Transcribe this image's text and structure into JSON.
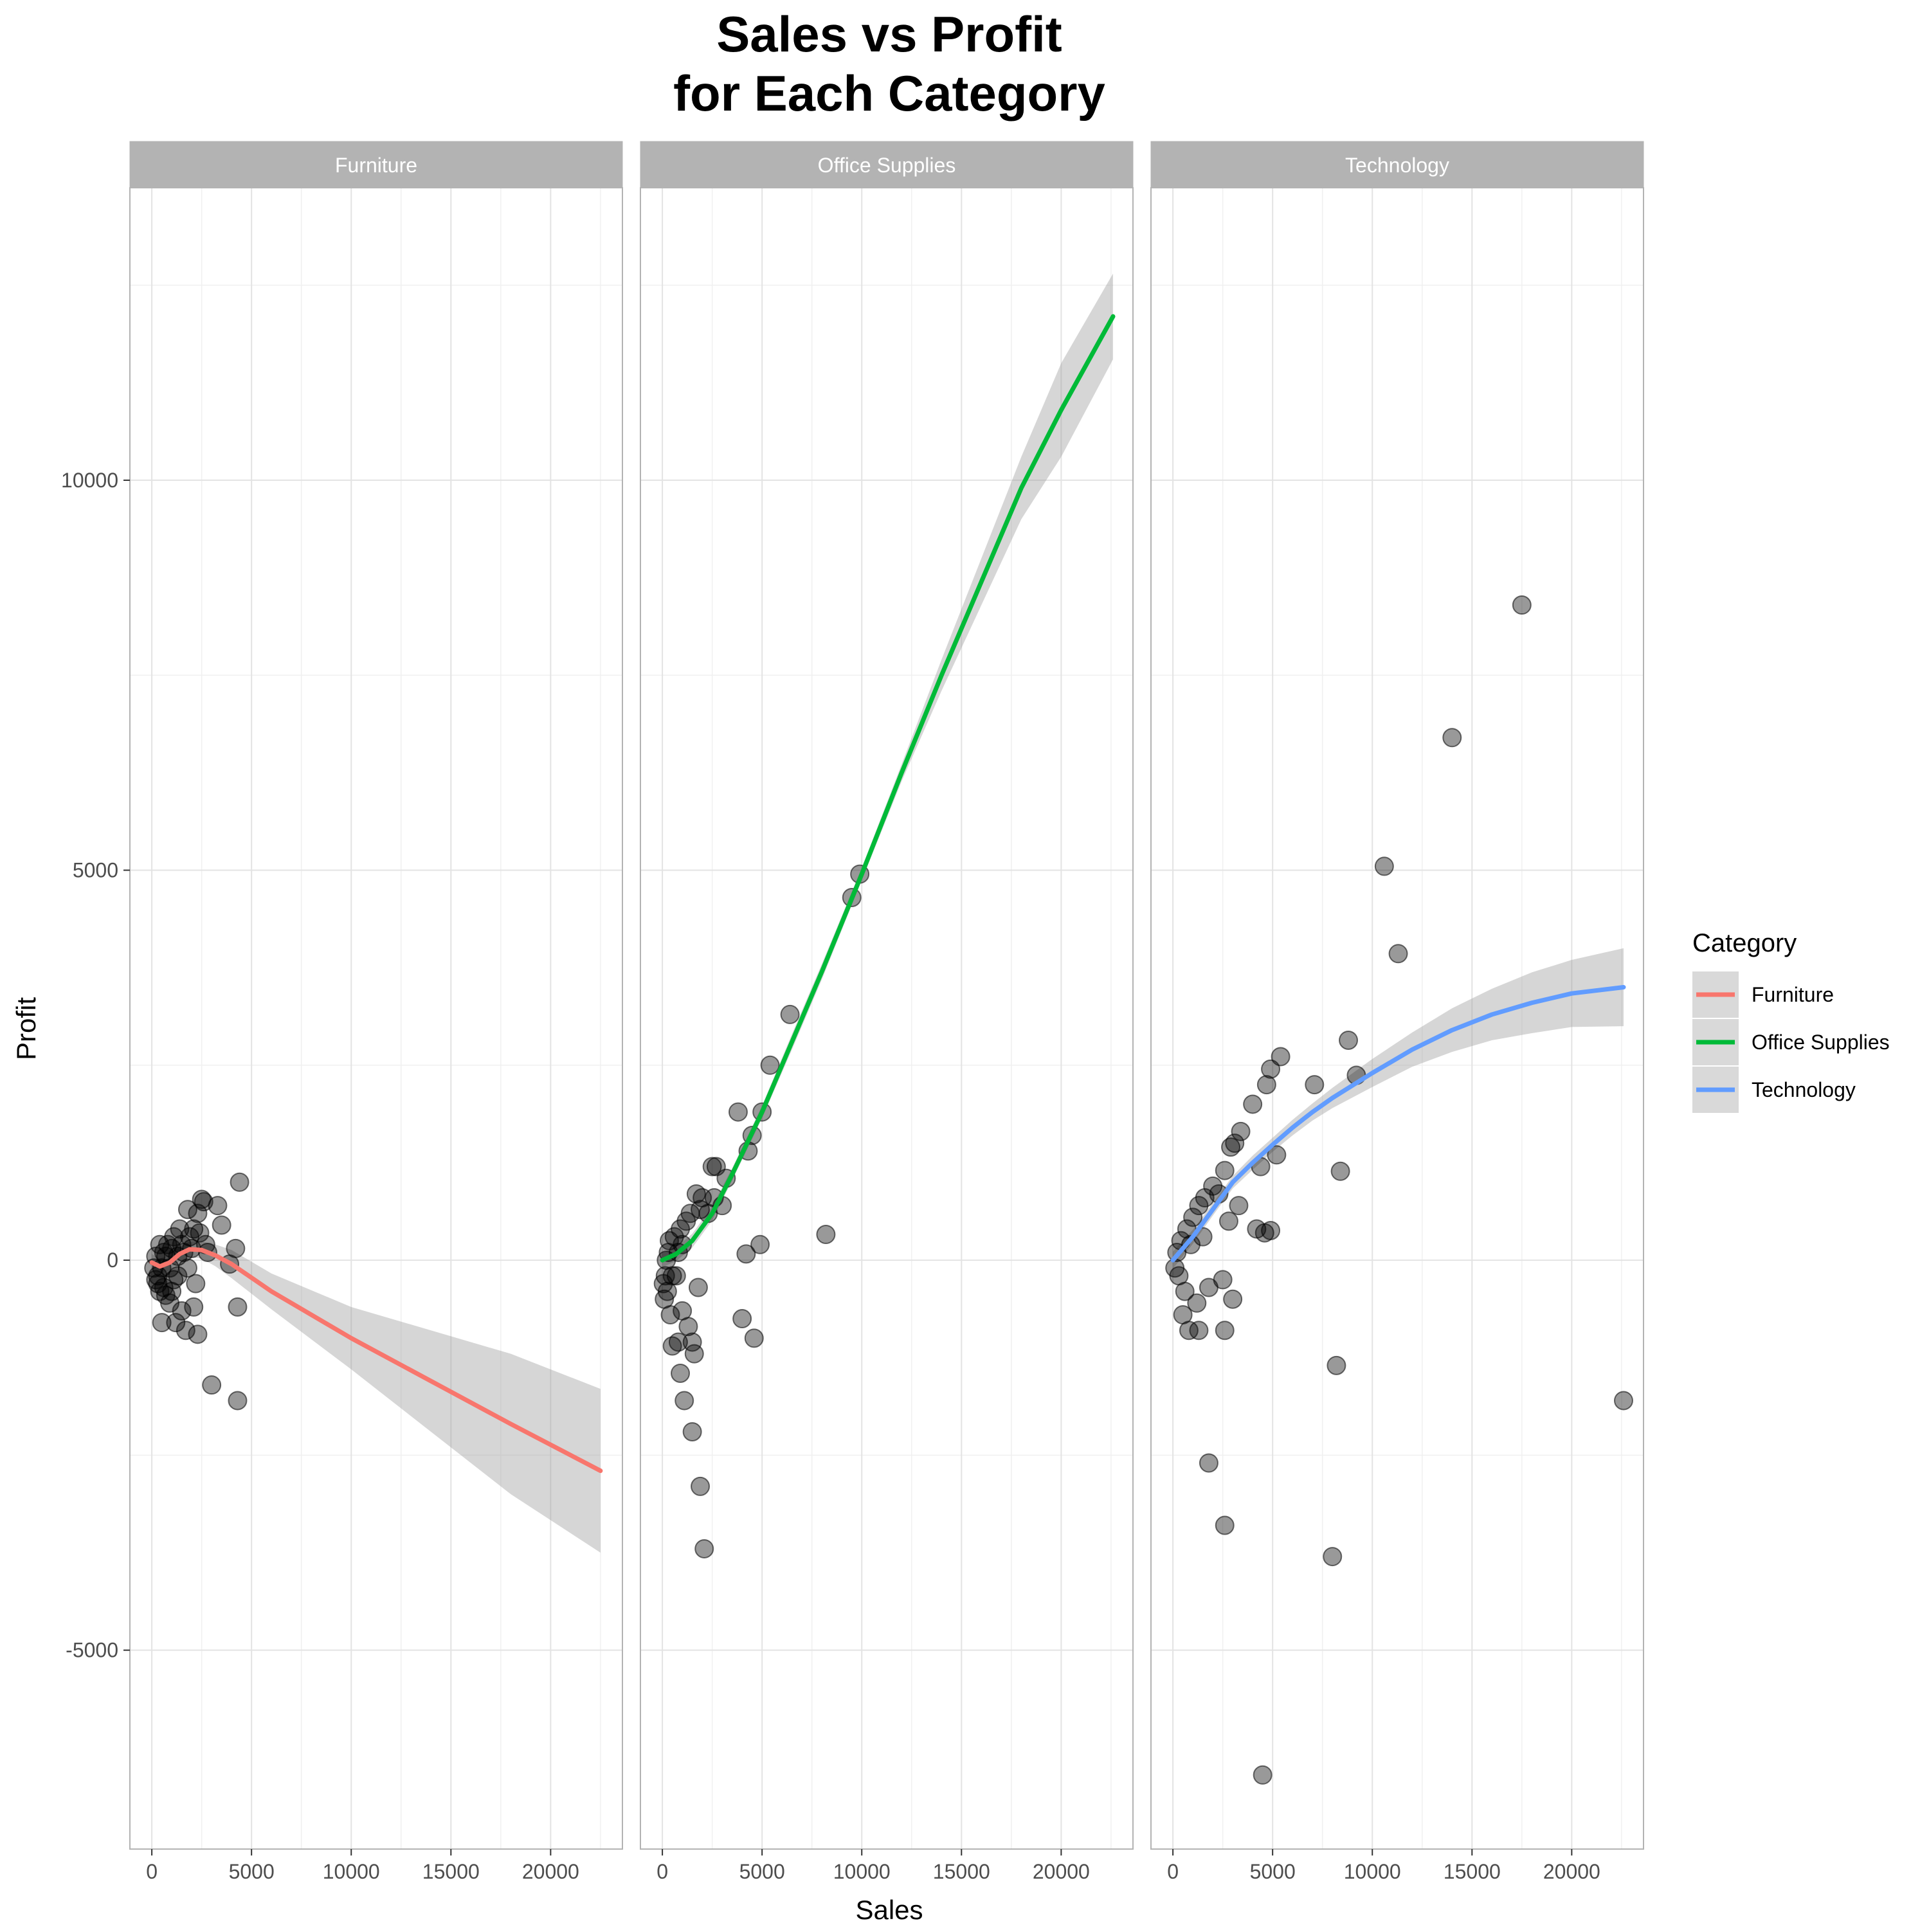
{
  "chart_data": {
    "type": "scatter",
    "title_lines": [
      "Sales vs Profit",
      "for Each Category"
    ],
    "xlabel": "Sales",
    "ylabel": "Profit",
    "xlim": [
      -1100,
      23600
    ],
    "ylim": [
      -7550,
      13750
    ],
    "x_ticks": [
      0,
      5000,
      10000,
      15000,
      20000
    ],
    "x_tick_labels": [
      "0",
      "5000",
      "10000",
      "15000",
      "20000"
    ],
    "y_ticks": [
      -5000,
      0,
      5000,
      10000
    ],
    "y_tick_labels": [
      "-5000",
      "0",
      "5000",
      "10000"
    ],
    "grid": true,
    "legend": {
      "title": "Category",
      "position": "right",
      "items": [
        {
          "label": "Furniture",
          "color": "#F8766D"
        },
        {
          "label": "Office Supplies",
          "color": "#00BA38"
        },
        {
          "label": "Technology",
          "color": "#619CFF"
        }
      ]
    },
    "panels": [
      {
        "name": "Furniture",
        "color": "#F8766D",
        "points": [
          [
            4400,
            1000
          ],
          [
            3300,
            700
          ],
          [
            2500,
            780
          ],
          [
            2600,
            750
          ],
          [
            1800,
            650
          ],
          [
            2300,
            600
          ],
          [
            3500,
            450
          ],
          [
            4200,
            150
          ],
          [
            3900,
            -50
          ],
          [
            4300,
            -600
          ],
          [
            3000,
            -1600
          ],
          [
            4300,
            -1800
          ],
          [
            2300,
            -950
          ],
          [
            1700,
            -900
          ],
          [
            2100,
            -600
          ],
          [
            1500,
            -650
          ],
          [
            1200,
            -800
          ],
          [
            500,
            -800
          ],
          [
            900,
            -550
          ],
          [
            2200,
            -300
          ],
          [
            1000,
            -400
          ],
          [
            700,
            -450
          ],
          [
            300,
            -300
          ],
          [
            1300,
            -200
          ],
          [
            1600,
            100
          ],
          [
            1900,
            300
          ],
          [
            2100,
            400
          ],
          [
            2700,
            200
          ],
          [
            1400,
            400
          ],
          [
            1100,
            300
          ],
          [
            800,
            200
          ],
          [
            600,
            100
          ],
          [
            400,
            200
          ],
          [
            200,
            50
          ],
          [
            100,
            -100
          ],
          [
            300,
            -200
          ],
          [
            500,
            -100
          ],
          [
            700,
            50
          ],
          [
            900,
            -100
          ],
          [
            1100,
            -250
          ],
          [
            1500,
            200
          ],
          [
            1800,
            -100
          ],
          [
            2000,
            150
          ],
          [
            2400,
            350
          ],
          [
            2800,
            100
          ],
          [
            600,
            -350
          ],
          [
            400,
            -400
          ],
          [
            200,
            -250
          ],
          [
            1000,
            150
          ],
          [
            1300,
            50
          ]
        ],
        "fit": [
          [
            0,
            -30
          ],
          [
            400,
            -80
          ],
          [
            900,
            -30
          ],
          [
            1400,
            80
          ],
          [
            1900,
            140
          ],
          [
            2500,
            130
          ],
          [
            3200,
            60
          ],
          [
            4000,
            -50
          ],
          [
            6000,
            -400
          ],
          [
            10000,
            -1000
          ],
          [
            14000,
            -1550
          ],
          [
            18000,
            -2100
          ],
          [
            22500,
            -2700
          ]
        ],
        "band_upper": [
          [
            0,
            80
          ],
          [
            400,
            20
          ],
          [
            900,
            80
          ],
          [
            1400,
            170
          ],
          [
            1900,
            240
          ],
          [
            2500,
            240
          ],
          [
            3200,
            200
          ],
          [
            4000,
            130
          ],
          [
            6000,
            -170
          ],
          [
            10000,
            -600
          ],
          [
            14000,
            -900
          ],
          [
            18000,
            -1200
          ],
          [
            22500,
            -1650
          ]
        ],
        "band_lower": [
          [
            0,
            -140
          ],
          [
            400,
            -180
          ],
          [
            900,
            -130
          ],
          [
            1400,
            -10
          ],
          [
            1900,
            40
          ],
          [
            2500,
            20
          ],
          [
            3200,
            -80
          ],
          [
            4000,
            -230
          ],
          [
            6000,
            -630
          ],
          [
            10000,
            -1400
          ],
          [
            14000,
            -2200
          ],
          [
            18000,
            -3000
          ],
          [
            22500,
            -3750
          ]
        ]
      },
      {
        "name": "Office Supplies",
        "color": "#00BA38",
        "points": [
          [
            9900,
            4950
          ],
          [
            9500,
            4650
          ],
          [
            6400,
            3150
          ],
          [
            5400,
            2500
          ],
          [
            5000,
            1900
          ],
          [
            3800,
            1900
          ],
          [
            4300,
            1400
          ],
          [
            4500,
            1600
          ],
          [
            2500,
            1200
          ],
          [
            2700,
            1200
          ],
          [
            3200,
            1050
          ],
          [
            4200,
            80
          ],
          [
            4900,
            200
          ],
          [
            8200,
            330
          ],
          [
            4600,
            -1000
          ],
          [
            4000,
            -750
          ],
          [
            2100,
            -3700
          ],
          [
            1900,
            -2900
          ],
          [
            1500,
            -2200
          ],
          [
            1100,
            -1800
          ],
          [
            900,
            -1450
          ],
          [
            1600,
            -1200
          ],
          [
            1500,
            -1050
          ],
          [
            1300,
            -850
          ],
          [
            800,
            -1050
          ],
          [
            500,
            -1100
          ],
          [
            1000,
            -650
          ],
          [
            400,
            -700
          ],
          [
            1800,
            -350
          ],
          [
            2300,
            600
          ],
          [
            2000,
            800
          ],
          [
            1700,
            850
          ],
          [
            1200,
            500
          ],
          [
            900,
            400
          ],
          [
            600,
            300
          ],
          [
            300,
            100
          ],
          [
            150,
            -200
          ],
          [
            250,
            -400
          ],
          [
            100,
            -500
          ],
          [
            50,
            -300
          ],
          [
            700,
            -200
          ],
          [
            1000,
            200
          ],
          [
            1400,
            600
          ],
          [
            1900,
            650
          ],
          [
            2600,
            800
          ],
          [
            3000,
            700
          ],
          [
            500,
            -200
          ],
          [
            800,
            100
          ],
          [
            350,
            250
          ],
          [
            200,
            0
          ]
        ],
        "fit": [
          [
            0,
            0
          ],
          [
            700,
            80
          ],
          [
            1500,
            250
          ],
          [
            2500,
            600
          ],
          [
            3500,
            1100
          ],
          [
            5000,
            1900
          ],
          [
            6500,
            2800
          ],
          [
            8000,
            3700
          ],
          [
            10000,
            4950
          ],
          [
            12000,
            6250
          ],
          [
            14000,
            7500
          ],
          [
            16000,
            8700
          ],
          [
            18000,
            9900
          ],
          [
            20000,
            10900
          ],
          [
            22600,
            12100
          ]
        ],
        "band_upper": [
          [
            0,
            90
          ],
          [
            700,
            170
          ],
          [
            1500,
            340
          ],
          [
            2500,
            690
          ],
          [
            3500,
            1180
          ],
          [
            5000,
            1980
          ],
          [
            6500,
            2900
          ],
          [
            8000,
            3800
          ],
          [
            10000,
            5030
          ],
          [
            12000,
            6360
          ],
          [
            14000,
            7700
          ],
          [
            16000,
            9000
          ],
          [
            18000,
            10300
          ],
          [
            20000,
            11500
          ],
          [
            22600,
            12650
          ]
        ],
        "band_lower": [
          [
            0,
            -90
          ],
          [
            700,
            -10
          ],
          [
            1500,
            160
          ],
          [
            2500,
            510
          ],
          [
            3500,
            1020
          ],
          [
            5000,
            1820
          ],
          [
            6500,
            2700
          ],
          [
            8000,
            3600
          ],
          [
            10000,
            4870
          ],
          [
            12000,
            6140
          ],
          [
            14000,
            7300
          ],
          [
            16000,
            8400
          ],
          [
            18000,
            9500
          ],
          [
            20000,
            10300
          ],
          [
            22600,
            11550
          ]
        ]
      },
      {
        "name": "Technology",
        "color": "#619CFF",
        "points": [
          [
            17500,
            8400
          ],
          [
            14000,
            6700
          ],
          [
            10600,
            5050
          ],
          [
            11300,
            3930
          ],
          [
            8800,
            2820
          ],
          [
            9200,
            2370
          ],
          [
            7100,
            2250
          ],
          [
            5400,
            2610
          ],
          [
            4900,
            2450
          ],
          [
            4700,
            2250
          ],
          [
            4000,
            2000
          ],
          [
            3400,
            1650
          ],
          [
            3100,
            1500
          ],
          [
            2900,
            1450
          ],
          [
            2600,
            1150
          ],
          [
            8400,
            1140
          ],
          [
            4400,
            1200
          ],
          [
            5200,
            1350
          ],
          [
            4600,
            350
          ],
          [
            4900,
            380
          ],
          [
            4200,
            400
          ],
          [
            8200,
            -1350
          ],
          [
            22600,
            -1800
          ],
          [
            1800,
            -2600
          ],
          [
            2600,
            -3400
          ],
          [
            8000,
            -3800
          ],
          [
            4500,
            -6600
          ],
          [
            2600,
            -900
          ],
          [
            1300,
            -900
          ],
          [
            800,
            -900
          ],
          [
            500,
            -700
          ],
          [
            3000,
            -500
          ],
          [
            2500,
            -250
          ],
          [
            1800,
            -350
          ],
          [
            1200,
            -550
          ],
          [
            600,
            -400
          ],
          [
            300,
            -200
          ],
          [
            100,
            -100
          ],
          [
            200,
            100
          ],
          [
            400,
            250
          ],
          [
            700,
            400
          ],
          [
            1000,
            550
          ],
          [
            1300,
            700
          ],
          [
            1600,
            800
          ],
          [
            2000,
            950
          ],
          [
            2300,
            850
          ],
          [
            3300,
            700
          ],
          [
            2800,
            500
          ],
          [
            1500,
            300
          ],
          [
            900,
            200
          ]
        ],
        "fit": [
          [
            0,
            0
          ],
          [
            1000,
            300
          ],
          [
            2000,
            650
          ],
          [
            3000,
            1000
          ],
          [
            4000,
            1250
          ],
          [
            5000,
            1480
          ],
          [
            6000,
            1700
          ],
          [
            7000,
            1900
          ],
          [
            8000,
            2080
          ],
          [
            10000,
            2400
          ],
          [
            12000,
            2700
          ],
          [
            14000,
            2950
          ],
          [
            16000,
            3150
          ],
          [
            18000,
            3300
          ],
          [
            20000,
            3420
          ],
          [
            22600,
            3500
          ]
        ],
        "band_upper": [
          [
            0,
            110
          ],
          [
            1000,
            390
          ],
          [
            2000,
            730
          ],
          [
            3000,
            1080
          ],
          [
            4000,
            1340
          ],
          [
            5000,
            1570
          ],
          [
            6000,
            1800
          ],
          [
            7000,
            2010
          ],
          [
            8000,
            2210
          ],
          [
            10000,
            2580
          ],
          [
            12000,
            2920
          ],
          [
            14000,
            3230
          ],
          [
            16000,
            3480
          ],
          [
            18000,
            3690
          ],
          [
            20000,
            3850
          ],
          [
            22600,
            4000
          ]
        ],
        "band_lower": [
          [
            0,
            -110
          ],
          [
            1000,
            210
          ],
          [
            2000,
            570
          ],
          [
            3000,
            920
          ],
          [
            4000,
            1160
          ],
          [
            5000,
            1390
          ],
          [
            6000,
            1600
          ],
          [
            7000,
            1790
          ],
          [
            8000,
            1950
          ],
          [
            10000,
            2220
          ],
          [
            12000,
            2480
          ],
          [
            14000,
            2670
          ],
          [
            16000,
            2820
          ],
          [
            18000,
            2910
          ],
          [
            20000,
            2990
          ],
          [
            22600,
            3000
          ]
        ]
      }
    ]
  }
}
